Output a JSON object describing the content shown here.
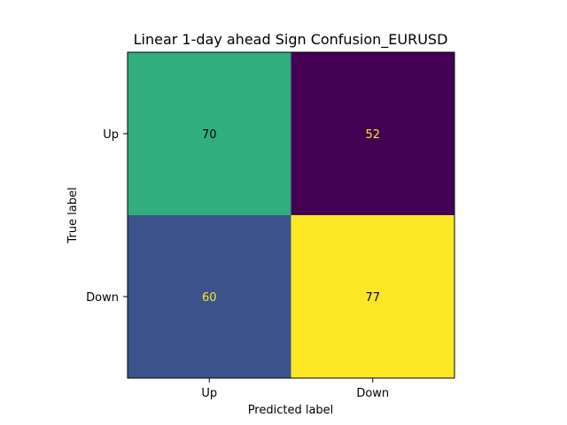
{
  "chart_data": {
    "type": "heatmap",
    "title": "Linear 1-day ahead Sign Confusion_EURUSD",
    "xlabel": "Predicted label",
    "ylabel": "True label",
    "x_categories": [
      "Up",
      "Down"
    ],
    "y_categories": [
      "Up",
      "Down"
    ],
    "values": [
      [
        70,
        52
      ],
      [
        60,
        77
      ]
    ],
    "colormap": "viridis",
    "colorbar": false,
    "grid": false,
    "text_color_dark": "#000000",
    "text_color_light": "#fde725"
  }
}
